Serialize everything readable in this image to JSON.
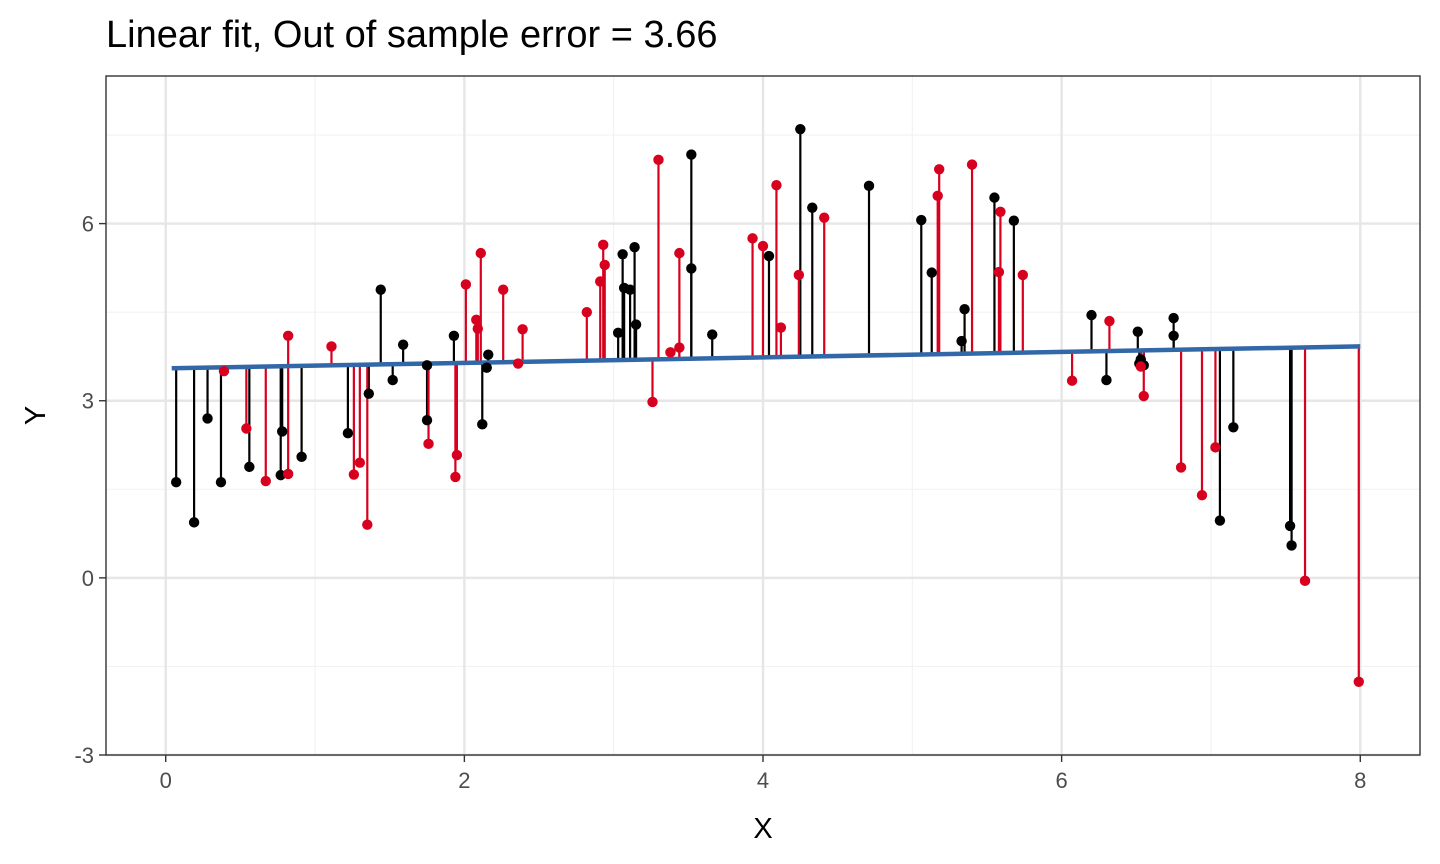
{
  "chart_data": {
    "type": "scatter",
    "title": "Linear fit, Out of sample error = 3.66",
    "xlabel": "X",
    "ylabel": "Y",
    "xlim": [
      -0.4,
      8.4
    ],
    "ylim": [
      -3,
      8.5
    ],
    "x_ticks": [
      0,
      2,
      4,
      6,
      8
    ],
    "x_tick_labels": [
      "0",
      "2",
      "4",
      "6",
      "8"
    ],
    "y_ticks": [
      -3,
      0,
      3,
      6
    ],
    "y_tick_labels": [
      "-3",
      "0",
      "3",
      "6"
    ],
    "grid": true,
    "colors": {
      "train": "#000000",
      "test": "#d7001e",
      "fit_line": "#3267a8",
      "panel_border": "#333333",
      "grid_major": "#e6e6e6",
      "grid_minor": "#f2f2f2"
    },
    "fit_line": {
      "x": [
        0.04,
        8.0
      ],
      "y": [
        3.55,
        3.92
      ]
    },
    "series": [
      {
        "role": "train",
        "color": "#000000",
        "points": [
          [
            0.07,
            1.62
          ],
          [
            0.19,
            0.94
          ],
          [
            0.28,
            2.7
          ],
          [
            0.37,
            1.62
          ],
          [
            0.56,
            1.88
          ],
          [
            0.77,
            1.74
          ],
          [
            0.78,
            2.48
          ],
          [
            0.91,
            2.05
          ],
          [
            1.22,
            2.45
          ],
          [
            1.36,
            3.12
          ],
          [
            1.44,
            4.88
          ],
          [
            1.52,
            3.35
          ],
          [
            1.59,
            3.95
          ],
          [
            1.75,
            3.6
          ],
          [
            1.75,
            2.67
          ],
          [
            1.93,
            4.1
          ],
          [
            2.12,
            2.6
          ],
          [
            2.15,
            3.56
          ],
          [
            2.16,
            3.78
          ],
          [
            3.03,
            4.15
          ],
          [
            3.06,
            5.48
          ],
          [
            3.07,
            4.91
          ],
          [
            3.11,
            4.88
          ],
          [
            3.14,
            5.6
          ],
          [
            3.15,
            4.29
          ],
          [
            3.52,
            5.24
          ],
          [
            3.52,
            7.17
          ],
          [
            3.66,
            4.12
          ],
          [
            4.04,
            5.45
          ],
          [
            4.25,
            7.6
          ],
          [
            4.33,
            6.27
          ],
          [
            4.71,
            6.64
          ],
          [
            5.06,
            6.06
          ],
          [
            5.13,
            5.17
          ],
          [
            5.33,
            4.01
          ],
          [
            5.35,
            4.55
          ],
          [
            5.55,
            6.44
          ],
          [
            5.68,
            6.05
          ],
          [
            6.2,
            4.45
          ],
          [
            6.3,
            3.35
          ],
          [
            6.51,
            4.17
          ],
          [
            6.52,
            3.63
          ],
          [
            6.53,
            3.7
          ],
          [
            6.55,
            3.6
          ],
          [
            6.75,
            4.4
          ],
          [
            6.75,
            4.1
          ],
          [
            7.06,
            0.97
          ],
          [
            7.15,
            2.55
          ],
          [
            7.53,
            0.88
          ],
          [
            7.54,
            0.55
          ]
        ]
      },
      {
        "role": "test",
        "color": "#d7001e",
        "points": [
          [
            0.39,
            3.5
          ],
          [
            0.54,
            2.53
          ],
          [
            0.67,
            1.64
          ],
          [
            0.82,
            4.1
          ],
          [
            0.82,
            1.76
          ],
          [
            1.11,
            3.92
          ],
          [
            1.26,
            1.75
          ],
          [
            1.3,
            1.95
          ],
          [
            1.35,
            0.9
          ],
          [
            1.76,
            2.27
          ],
          [
            1.94,
            1.71
          ],
          [
            1.95,
            2.08
          ],
          [
            2.01,
            4.97
          ],
          [
            2.08,
            4.37
          ],
          [
            2.09,
            4.22
          ],
          [
            2.11,
            5.5
          ],
          [
            2.26,
            4.88
          ],
          [
            2.36,
            3.63
          ],
          [
            2.39,
            4.21
          ],
          [
            2.82,
            4.5
          ],
          [
            2.91,
            5.02
          ],
          [
            2.93,
            5.64
          ],
          [
            2.94,
            5.3
          ],
          [
            3.26,
            2.98
          ],
          [
            3.3,
            7.08
          ],
          [
            3.38,
            3.82
          ],
          [
            3.44,
            3.9
          ],
          [
            3.44,
            5.5
          ],
          [
            3.93,
            5.75
          ],
          [
            4.0,
            5.62
          ],
          [
            4.09,
            6.65
          ],
          [
            4.12,
            4.24
          ],
          [
            4.24,
            5.13
          ],
          [
            4.41,
            6.1
          ],
          [
            5.17,
            6.47
          ],
          [
            5.18,
            6.92
          ],
          [
            5.4,
            7.0
          ],
          [
            5.58,
            5.18
          ],
          [
            5.59,
            6.2
          ],
          [
            5.74,
            5.13
          ],
          [
            6.07,
            3.34
          ],
          [
            6.32,
            4.35
          ],
          [
            6.53,
            3.58
          ],
          [
            6.55,
            3.08
          ],
          [
            6.8,
            1.87
          ],
          [
            6.94,
            1.4
          ],
          [
            7.03,
            2.21
          ],
          [
            7.63,
            -0.05
          ],
          [
            7.99,
            -1.76
          ]
        ]
      }
    ]
  }
}
